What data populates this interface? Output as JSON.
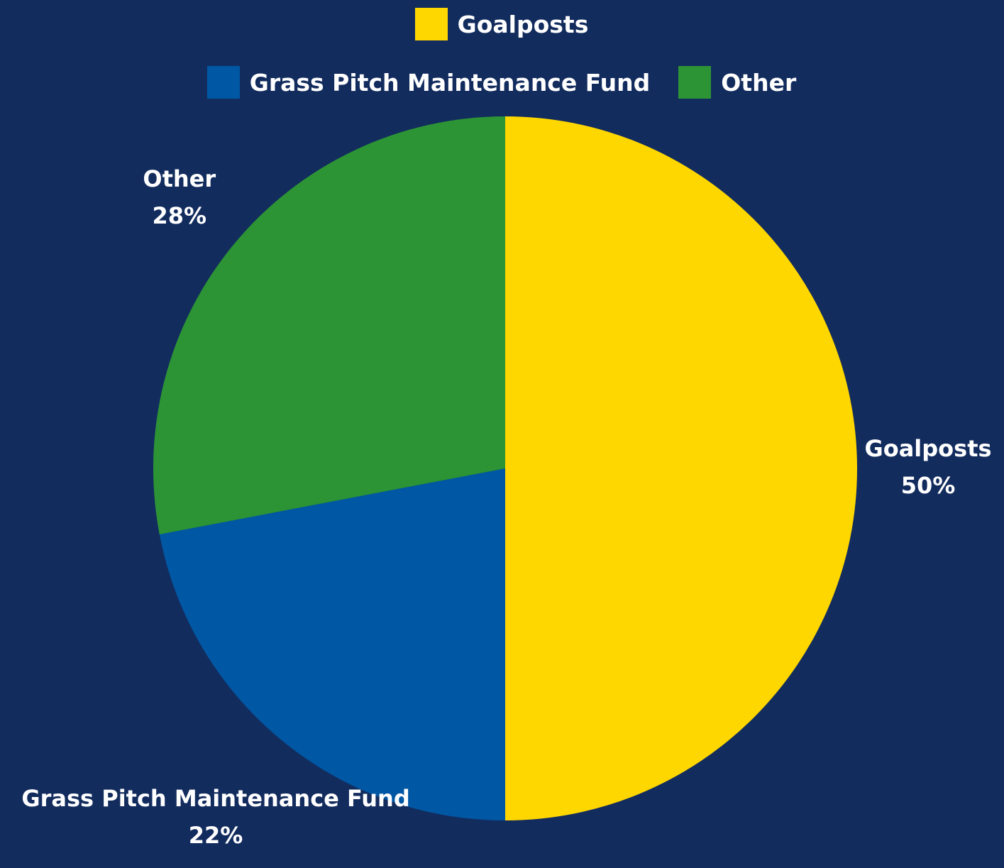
{
  "chart_data": {
    "type": "pie",
    "categories": [
      "Goalposts",
      "Grass Pitch Maintenance Fund",
      "Other"
    ],
    "values": [
      50,
      22,
      28
    ],
    "value_labels": [
      "50%",
      "22%",
      "28%"
    ],
    "colors": [
      "#FFD700",
      "#0057A3",
      "#2C9435"
    ],
    "legend": "top"
  }
}
